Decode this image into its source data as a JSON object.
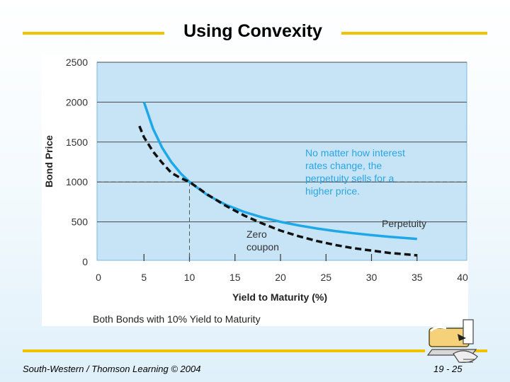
{
  "slide": {
    "title": "Using Convexity",
    "footer_left": "South-Western / Thomson Learning © 2004",
    "footer_right": "19 - 25"
  },
  "colors": {
    "accent_line": "#f2c200",
    "plot_bg": "#c6e4f6",
    "perpetuity_line": "#1ea8e8",
    "zero_coupon_line": "#111111"
  },
  "chart_data": {
    "type": "line",
    "title": "",
    "xlabel": "Yield to Maturity (%)",
    "ylabel": "Bond Price",
    "xlim": [
      0,
      40
    ],
    "ylim": [
      0,
      2500
    ],
    "x_ticks": [
      0,
      5,
      10,
      15,
      20,
      25,
      30,
      35,
      40
    ],
    "y_ticks": [
      0,
      500,
      1000,
      1500,
      2000,
      2500
    ],
    "grid": true,
    "series": [
      {
        "name": "Perpetuity",
        "style": "solid",
        "x": [
          5,
          6,
          7,
          8,
          9,
          10,
          12,
          14,
          16,
          18,
          20,
          22,
          24,
          26,
          28,
          30,
          32,
          34,
          35
        ],
        "y": [
          2000,
          1667,
          1429,
          1250,
          1111,
          1000,
          833,
          714,
          625,
          556,
          500,
          455,
          417,
          385,
          357,
          333,
          313,
          294,
          286
        ]
      },
      {
        "name": "Zero coupon",
        "style": "dashed",
        "x": [
          4.5,
          5,
          6,
          7,
          8,
          9,
          10,
          12,
          14,
          16,
          18,
          20,
          22,
          24,
          26,
          28,
          30,
          32,
          34,
          35
        ],
        "y": [
          1700,
          1560,
          1380,
          1240,
          1115,
          1050,
          1000,
          840,
          700,
          580,
          480,
          390,
          320,
          260,
          210,
          170,
          140,
          110,
          90,
          80
        ]
      }
    ],
    "reference": {
      "x": 10,
      "y": 1000
    },
    "annotations": {
      "perpetuity_label": "Perpetuity",
      "zero_label_1": "Zero",
      "zero_label_2": "coupon",
      "note": [
        "No matter how interest",
        "rates change, the",
        "perpetuity sells for a",
        "higher price."
      ]
    },
    "caption": "Both Bonds with 10% Yield to Maturity"
  }
}
